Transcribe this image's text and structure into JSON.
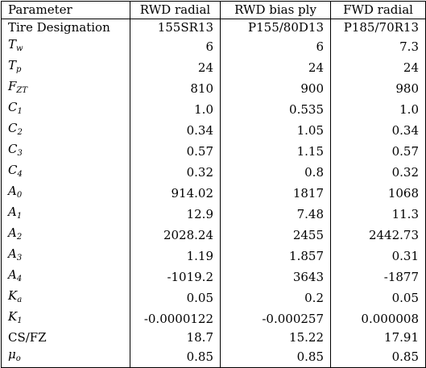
{
  "table": {
    "headers": [
      "Parameter",
      "RWD radial",
      "RWD bias ply",
      "FWD radial"
    ],
    "rows": [
      {
        "param_base": "Tire Designation",
        "param_sub": "",
        "italic": false,
        "values": [
          "155SR13",
          "P155/80D13",
          "P185/70R13"
        ]
      },
      {
        "param_base": "T",
        "param_sub": "w",
        "italic": true,
        "values": [
          "6",
          "6",
          "7.3"
        ]
      },
      {
        "param_base": "T",
        "param_sub": "p",
        "italic": true,
        "values": [
          "24",
          "24",
          "24"
        ]
      },
      {
        "param_base": "F",
        "param_sub": "ZT",
        "italic": true,
        "values": [
          "810",
          "900",
          "980"
        ]
      },
      {
        "param_base": "C",
        "param_sub": "1",
        "italic": true,
        "values": [
          "1.0",
          "0.535",
          "1.0"
        ]
      },
      {
        "param_base": "C",
        "param_sub": "2",
        "italic": true,
        "values": [
          "0.34",
          "1.05",
          "0.34"
        ]
      },
      {
        "param_base": "C",
        "param_sub": "3",
        "italic": true,
        "values": [
          "0.57",
          "1.15",
          "0.57"
        ]
      },
      {
        "param_base": "C",
        "param_sub": "4",
        "italic": true,
        "values": [
          "0.32",
          "0.8",
          "0.32"
        ]
      },
      {
        "param_base": "A",
        "param_sub": "0",
        "italic": true,
        "values": [
          "914.02",
          "1817",
          "1068"
        ]
      },
      {
        "param_base": "A",
        "param_sub": "1",
        "italic": true,
        "values": [
          "12.9",
          "7.48",
          "11.3"
        ]
      },
      {
        "param_base": "A",
        "param_sub": "2",
        "italic": true,
        "values": [
          "2028.24",
          "2455",
          "2442.73"
        ]
      },
      {
        "param_base": "A",
        "param_sub": "3",
        "italic": true,
        "values": [
          "1.19",
          "1.857",
          "0.31"
        ]
      },
      {
        "param_base": "A",
        "param_sub": "4",
        "italic": true,
        "values": [
          "-1019.2",
          "3643",
          "-1877"
        ]
      },
      {
        "param_base": "K",
        "param_sub": "a",
        "italic": true,
        "values": [
          "0.05",
          "0.2",
          "0.05"
        ]
      },
      {
        "param_base": "K",
        "param_sub": "1",
        "italic": true,
        "values": [
          "-0.0000122",
          "-0.000257",
          "0.000008"
        ]
      },
      {
        "param_base": "CS/FZ",
        "param_sub": "",
        "italic": false,
        "values": [
          "18.7",
          "15.22",
          "17.91"
        ]
      },
      {
        "param_base": "μ",
        "param_sub": "o",
        "italic": true,
        "values": [
          "0.85",
          "0.85",
          "0.85"
        ]
      }
    ]
  }
}
